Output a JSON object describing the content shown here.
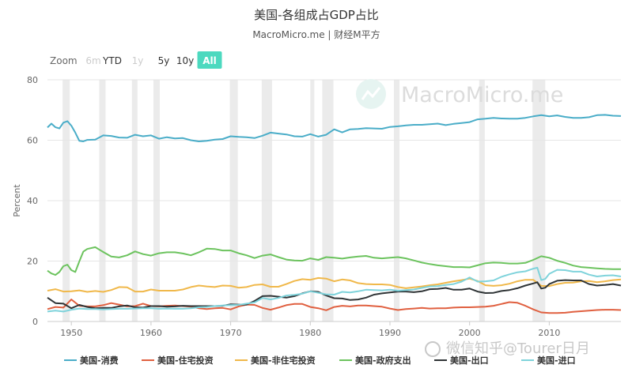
{
  "chart_data": {
    "type": "line",
    "title": "美国-各组成占GDP占比",
    "subtitle": "MacroMicro.me | 财经M平方",
    "ylabel": "Percent",
    "xlim": [
      1947,
      2019
    ],
    "ylim": [
      0,
      80
    ],
    "y_ticks": [
      "0",
      "20",
      "40",
      "60",
      "80"
    ],
    "x_ticks": [
      "1950",
      "1960",
      "1970",
      "1980",
      "1990",
      "2000",
      "2010"
    ],
    "grid": true,
    "legend_position": "bottom",
    "zoom": {
      "label": "Zoom",
      "buttons": [
        "6m",
        "YTD",
        "1y",
        "5y",
        "10y",
        "All"
      ],
      "disabled": [
        "6m",
        "1y"
      ],
      "active": "All"
    },
    "recession_bands": [
      [
        1948.9,
        1949.8
      ],
      [
        1953.5,
        1954.3
      ],
      [
        1957.6,
        1958.3
      ],
      [
        1960.3,
        1961.1
      ],
      [
        1969.9,
        1970.9
      ],
      [
        1973.9,
        1975.2
      ],
      [
        1980.0,
        1980.5
      ],
      [
        1981.5,
        1982.9
      ],
      [
        1990.5,
        1991.2
      ],
      [
        2001.2,
        2001.9
      ],
      [
        2007.9,
        2009.5
      ]
    ],
    "series": [
      {
        "name": "美国-消费",
        "color": "#4AADC8",
        "x": [
          1947,
          1947.5,
          1948,
          1948.5,
          1949,
          1949.5,
          1950,
          1950.5,
          1951,
          1951.5,
          1952,
          1953,
          1954,
          1955,
          1956,
          1957,
          1958,
          1959,
          1960,
          1961,
          1962,
          1963,
          1964,
          1965,
          1966,
          1967,
          1968,
          1969,
          1970,
          1971,
          1972,
          1973,
          1974,
          1975,
          1976,
          1977,
          1978,
          1979,
          1980,
          1981,
          1982,
          1983,
          1984,
          1985,
          1986,
          1987,
          1988,
          1989,
          1990,
          1991,
          1992,
          1993,
          1994,
          1995,
          1996,
          1997,
          1998,
          1999,
          2000,
          2001,
          2002,
          2003,
          2004,
          2005,
          2006,
          2007,
          2008,
          2009,
          2010,
          2011,
          2012,
          2013,
          2014,
          2015,
          2016,
          2017,
          2018,
          2019
        ],
        "values": [
          64.2,
          65.5,
          64.3,
          63.9,
          65.8,
          66.3,
          64.8,
          62.5,
          59.8,
          59.6,
          60.1,
          60.2,
          61.6,
          61.4,
          60.9,
          60.8,
          61.8,
          61.3,
          61.6,
          60.5,
          61.0,
          60.6,
          60.7,
          60.0,
          59.6,
          59.8,
          60.2,
          60.4,
          61.3,
          61.1,
          61.0,
          60.7,
          61.5,
          62.5,
          62.2,
          61.9,
          61.3,
          61.2,
          62.0,
          61.2,
          61.8,
          63.6,
          62.6,
          63.6,
          63.7,
          64.0,
          63.9,
          63.8,
          64.4,
          64.6,
          64.9,
          65.1,
          65.1,
          65.3,
          65.5,
          65.0,
          65.4,
          65.7,
          66.0,
          66.9,
          67.1,
          67.4,
          67.2,
          67.1,
          67.1,
          67.4,
          67.9,
          68.3,
          67.9,
          68.2,
          67.7,
          67.4,
          67.4,
          67.6,
          68.3,
          68.4,
          68.1,
          68.0
        ]
      },
      {
        "name": "美国-住宅投资",
        "color": "#E06040",
        "x": [
          1947,
          1948,
          1949,
          1950,
          1951,
          1952,
          1953,
          1954,
          1955,
          1956,
          1957,
          1958,
          1959,
          1960,
          1961,
          1962,
          1963,
          1964,
          1965,
          1966,
          1967,
          1968,
          1969,
          1970,
          1971,
          1972,
          1973,
          1974,
          1975,
          1976,
          1977,
          1978,
          1979,
          1980,
          1981,
          1982,
          1983,
          1984,
          1985,
          1986,
          1987,
          1988,
          1989,
          1990,
          1991,
          1992,
          1993,
          1994,
          1995,
          1996,
          1997,
          1998,
          1999,
          2000,
          2001,
          2002,
          2003,
          2004,
          2005,
          2006,
          2007,
          2008,
          2009,
          2010,
          2011,
          2012,
          2013,
          2014,
          2015,
          2016,
          2017,
          2018,
          2019
        ],
        "values": [
          4.1,
          4.8,
          4.6,
          7.3,
          5.2,
          5.0,
          5.0,
          5.4,
          6.1,
          5.6,
          5.0,
          5.1,
          5.9,
          5.1,
          5.0,
          5.2,
          5.3,
          5.1,
          4.9,
          4.4,
          4.1,
          4.4,
          4.5,
          4.0,
          5.0,
          5.6,
          5.5,
          4.5,
          3.9,
          4.6,
          5.4,
          5.8,
          5.8,
          4.8,
          4.4,
          3.7,
          4.8,
          5.2,
          5.0,
          5.3,
          5.3,
          5.1,
          4.9,
          4.3,
          3.8,
          4.1,
          4.3,
          4.5,
          4.3,
          4.4,
          4.4,
          4.6,
          4.7,
          4.7,
          4.8,
          4.9,
          5.2,
          5.8,
          6.4,
          6.2,
          5.2,
          4.0,
          3.0,
          2.8,
          2.8,
          2.9,
          3.2,
          3.4,
          3.6,
          3.8,
          3.9,
          3.9,
          3.8
        ]
      },
      {
        "name": "美国-非住宅投资",
        "color": "#F0B84A",
        "x": [
          1947,
          1948,
          1949,
          1950,
          1951,
          1952,
          1953,
          1954,
          1955,
          1956,
          1957,
          1958,
          1959,
          1960,
          1961,
          1962,
          1963,
          1964,
          1965,
          1966,
          1967,
          1968,
          1969,
          1970,
          1971,
          1972,
          1973,
          1974,
          1975,
          1976,
          1977,
          1978,
          1979,
          1980,
          1981,
          1982,
          1983,
          1984,
          1985,
          1986,
          1987,
          1988,
          1989,
          1990,
          1991,
          1992,
          1993,
          1994,
          1995,
          1996,
          1997,
          1998,
          1999,
          2000,
          2001,
          2002,
          2003,
          2004,
          2005,
          2006,
          2007,
          2008,
          2009,
          2010,
          2011,
          2012,
          2013,
          2014,
          2015,
          2016,
          2017,
          2018,
          2019
        ],
        "values": [
          10.2,
          10.7,
          9.9,
          10.0,
          10.3,
          9.8,
          10.1,
          9.8,
          10.4,
          11.4,
          11.3,
          9.9,
          9.9,
          10.6,
          10.2,
          10.2,
          10.2,
          10.6,
          11.4,
          11.9,
          11.6,
          11.4,
          11.9,
          11.8,
          11.2,
          11.4,
          12.1,
          12.3,
          11.5,
          11.5,
          12.4,
          13.4,
          14.0,
          13.8,
          14.4,
          14.2,
          13.3,
          13.9,
          13.6,
          12.7,
          12.4,
          12.3,
          12.3,
          12.1,
          11.4,
          11.0,
          11.3,
          11.6,
          12.0,
          12.3,
          12.8,
          13.3,
          13.7,
          14.2,
          13.4,
          12.0,
          11.8,
          12.0,
          12.5,
          13.3,
          13.8,
          13.8,
          11.8,
          11.7,
          12.4,
          12.8,
          12.9,
          13.3,
          13.4,
          13.0,
          13.3,
          13.7,
          13.9
        ]
      },
      {
        "name": "美国-政府支出",
        "color": "#6CC35E",
        "x": [
          1947,
          1947.5,
          1948,
          1948.5,
          1949,
          1949.5,
          1950,
          1950.5,
          1951,
          1951.5,
          1952,
          1953,
          1954,
          1955,
          1956,
          1957,
          1958,
          1959,
          1960,
          1961,
          1962,
          1963,
          1964,
          1965,
          1966,
          1967,
          1968,
          1969,
          1970,
          1971,
          1972,
          1973,
          1974,
          1975,
          1976,
          1977,
          1978,
          1979,
          1980,
          1981,
          1982,
          1983,
          1984,
          1985,
          1986,
          1987,
          1988,
          1989,
          1990,
          1991,
          1992,
          1993,
          1994,
          1995,
          1996,
          1997,
          1998,
          1999,
          2000,
          2001,
          2002,
          2003,
          2004,
          2005,
          2006,
          2007,
          2008,
          2009,
          2010,
          2011,
          2012,
          2013,
          2014,
          2015,
          2016,
          2017,
          2018,
          2019
        ],
        "values": [
          16.8,
          15.9,
          15.4,
          16.4,
          18.3,
          18.8,
          17.0,
          16.4,
          19.9,
          23.1,
          24.0,
          24.6,
          23.0,
          21.5,
          21.2,
          21.9,
          23.2,
          22.3,
          21.8,
          22.6,
          22.9,
          22.9,
          22.5,
          21.9,
          22.9,
          24.1,
          24.0,
          23.5,
          23.5,
          22.6,
          21.9,
          21.0,
          21.8,
          22.2,
          21.3,
          20.5,
          20.2,
          20.1,
          20.9,
          20.4,
          21.3,
          21.1,
          20.8,
          21.2,
          21.5,
          21.7,
          21.1,
          20.9,
          21.1,
          21.3,
          20.9,
          20.2,
          19.5,
          19.0,
          18.6,
          18.3,
          18.0,
          18.0,
          17.9,
          18.6,
          19.3,
          19.5,
          19.4,
          19.2,
          19.2,
          19.4,
          20.4,
          21.6,
          21.1,
          20.1,
          19.4,
          18.5,
          18.0,
          17.8,
          17.6,
          17.4,
          17.3,
          17.3
        ]
      },
      {
        "name": "美国-出口",
        "color": "#2F3436",
        "x": [
          1947,
          1948,
          1949,
          1950,
          1951,
          1952,
          1953,
          1954,
          1955,
          1956,
          1957,
          1958,
          1959,
          1960,
          1961,
          1962,
          1963,
          1964,
          1965,
          1966,
          1967,
          1968,
          1969,
          1970,
          1971,
          1972,
          1973,
          1974,
          1975,
          1976,
          1977,
          1978,
          1979,
          1980,
          1981,
          1982,
          1983,
          1984,
          1985,
          1986,
          1987,
          1988,
          1989,
          1990,
          1991,
          1992,
          1993,
          1994,
          1995,
          1996,
          1997,
          1998,
          1999,
          2000,
          2001,
          2002,
          2003,
          2004,
          2005,
          2006,
          2007,
          2008,
          2008.5,
          2009,
          2009.5,
          2010,
          2011,
          2012,
          2013,
          2014,
          2015,
          2016,
          2017,
          2018,
          2019
        ],
        "values": [
          7.9,
          6.1,
          5.9,
          4.4,
          5.5,
          4.8,
          4.4,
          4.5,
          4.5,
          5.0,
          5.3,
          4.7,
          4.6,
          5.1,
          5.1,
          4.9,
          5.0,
          5.2,
          5.1,
          5.1,
          5.1,
          5.1,
          5.2,
          5.7,
          5.6,
          5.6,
          6.8,
          8.4,
          8.5,
          8.2,
          7.9,
          8.4,
          9.3,
          10.0,
          9.8,
          8.6,
          7.7,
          7.6,
          7.1,
          7.3,
          7.9,
          8.9,
          9.3,
          9.6,
          9.9,
          9.9,
          9.7,
          10.0,
          10.7,
          10.8,
          11.1,
          10.5,
          10.5,
          10.9,
          9.9,
          9.4,
          9.5,
          10.1,
          10.4,
          11.0,
          11.9,
          12.6,
          13.0,
          10.9,
          11.2,
          12.4,
          13.5,
          13.7,
          13.6,
          13.6,
          12.4,
          11.9,
          12.1,
          12.4,
          11.9
        ]
      },
      {
        "name": "美国-进口",
        "color": "#7FD3DB",
        "x": [
          1947,
          1948,
          1949,
          1950,
          1951,
          1952,
          1953,
          1954,
          1955,
          1956,
          1957,
          1958,
          1959,
          1960,
          1961,
          1962,
          1963,
          1964,
          1965,
          1966,
          1967,
          1968,
          1969,
          1970,
          1971,
          1972,
          1973,
          1974,
          1975,
          1976,
          1977,
          1978,
          1979,
          1980,
          1981,
          1982,
          1983,
          1984,
          1985,
          1986,
          1987,
          1988,
          1989,
          1990,
          1991,
          1992,
          1993,
          1994,
          1995,
          1996,
          1997,
          1998,
          1999,
          2000,
          2001,
          2002,
          2003,
          2004,
          2005,
          2006,
          2007,
          2008,
          2008.5,
          2009,
          2009.5,
          2010,
          2011,
          2012,
          2013,
          2014,
          2015,
          2016,
          2017,
          2018,
          2019
        ],
        "values": [
          3.3,
          3.6,
          3.3,
          3.9,
          4.3,
          4.1,
          4.1,
          4.0,
          4.1,
          4.2,
          4.2,
          4.3,
          4.4,
          4.4,
          4.2,
          4.3,
          4.2,
          4.2,
          4.4,
          4.7,
          4.8,
          5.1,
          5.3,
          5.4,
          5.5,
          5.9,
          6.3,
          7.8,
          7.3,
          7.8,
          8.6,
          8.8,
          9.2,
          10.0,
          9.5,
          9.0,
          8.9,
          9.8,
          9.6,
          10.0,
          10.5,
          10.4,
          10.3,
          10.5,
          10.2,
          10.4,
          10.6,
          11.1,
          11.6,
          11.7,
          12.1,
          12.4,
          13.2,
          14.6,
          13.2,
          13.3,
          13.6,
          14.8,
          15.6,
          16.3,
          16.6,
          17.5,
          17.8,
          13.7,
          14.1,
          15.8,
          17.1,
          17.0,
          16.5,
          16.5,
          15.5,
          14.9,
          15.2,
          15.3,
          14.9
        ]
      }
    ]
  },
  "watermark": "MacroMicro.me",
  "wechat_watermark": "微信知乎@Tourer日月"
}
